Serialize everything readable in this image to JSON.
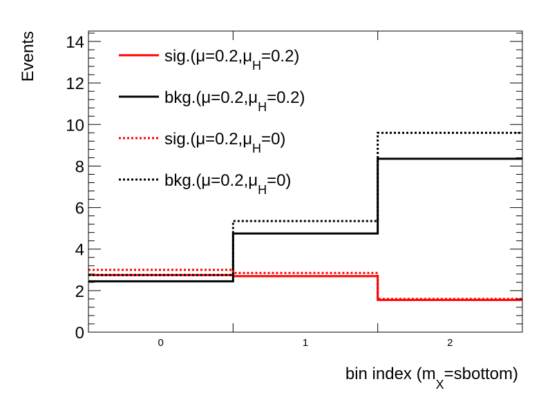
{
  "chart_data": {
    "type": "step",
    "categories": [
      "0",
      "1",
      "2"
    ],
    "xlabel": {
      "main": "bin index (m",
      "sub": "X",
      "rest": "=sbottom)"
    },
    "ylabel": "Events",
    "ylim": [
      0,
      14.5
    ],
    "yticks": [
      0,
      2,
      4,
      6,
      8,
      10,
      12,
      14
    ],
    "grid": false,
    "legend_placement": "top-left",
    "series": [
      {
        "name": "sig.(μ=0.2,μ_H=0.2)",
        "label_main": "sig.(μ=0.2,μ",
        "label_sub": "H",
        "label_rest": "=0.2)",
        "color": "#ff0000",
        "style": "solid",
        "values": [
          2.75,
          2.7,
          1.55
        ]
      },
      {
        "name": "bkg.(μ=0.2,μ_H=0.2)",
        "label_main": "bkg.(μ=0.2,μ",
        "label_sub": "H",
        "label_rest": "=0.2)",
        "color": "#000000",
        "style": "solid",
        "values": [
          2.45,
          4.75,
          8.35
        ]
      },
      {
        "name": "sig.(μ=0.2,μ_H=0)",
        "label_main": "sig.(μ=0.2,μ",
        "label_sub": "H",
        "label_rest": "=0)",
        "color": "#ff0000",
        "style": "dotted",
        "values": [
          3.0,
          2.85,
          1.6
        ]
      },
      {
        "name": "bkg.(μ=0.2,μ_H=0)",
        "label_main": "bkg.(μ=0.2,μ",
        "label_sub": "H",
        "label_rest": "=0)",
        "color": "#000000",
        "style": "dotted",
        "values": [
          2.75,
          5.35,
          9.6
        ]
      }
    ]
  }
}
